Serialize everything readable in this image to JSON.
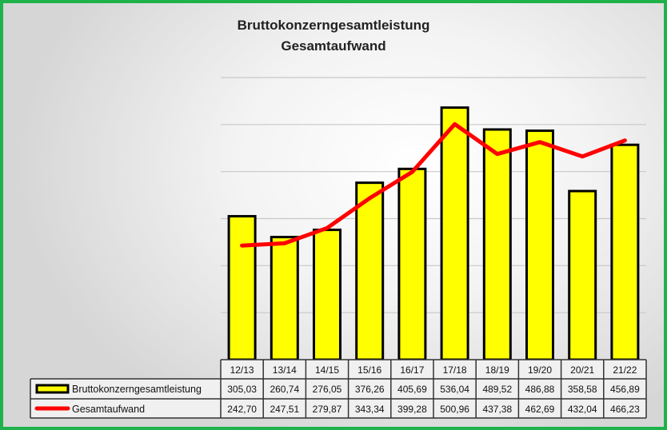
{
  "chart_data": {
    "type": "bar",
    "title": "Bruttokonzerngesamtleistung",
    "subtitle": "Gesamtaufwand",
    "categories": [
      "12/13",
      "13/14",
      "14/15",
      "15/16",
      "16/17",
      "17/18",
      "18/19",
      "19/20",
      "20/21",
      "21/22"
    ],
    "series": [
      {
        "name": "Bruttokonzerngesamtleistung",
        "type": "bar",
        "color": "#ffff00",
        "values": [
          305.03,
          260.74,
          276.05,
          376.26,
          405.69,
          536.04,
          489.52,
          486.88,
          358.58,
          456.89
        ],
        "value_labels": [
          "305,03",
          "260,74",
          "276,05",
          "376,26",
          "405,69",
          "536,04",
          "489,52",
          "486,88",
          "358,58",
          "456,89"
        ]
      },
      {
        "name": "Gesamtaufwand",
        "type": "line",
        "color": "#ff0000",
        "values": [
          242.7,
          247.51,
          279.87,
          343.34,
          399.28,
          500.96,
          437.38,
          462.69,
          432.04,
          466.23
        ],
        "value_labels": [
          "242,70",
          "247,51",
          "279,87",
          "343,34",
          "399,28",
          "500,96",
          "437,38",
          "462,69",
          "432,04",
          "466,23"
        ]
      }
    ],
    "ylim": [
      0,
      600
    ],
    "grid": true,
    "legend": "data-table"
  }
}
